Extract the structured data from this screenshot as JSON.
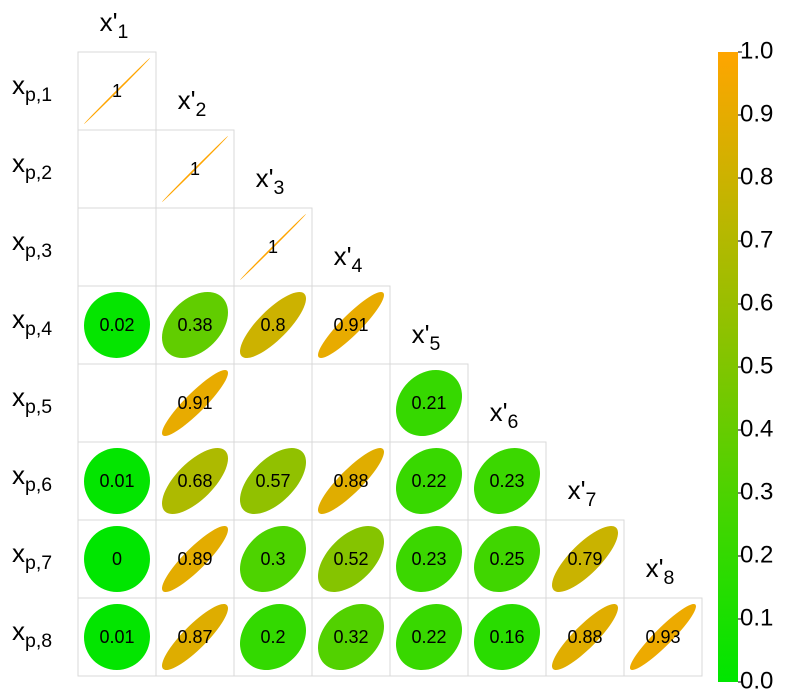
{
  "chart_data": {
    "type": "corrplot",
    "col_labels": [
      {
        "main": "x'",
        "sub": "1"
      },
      {
        "main": "x'",
        "sub": "2"
      },
      {
        "main": "x'",
        "sub": "3"
      },
      {
        "main": "x'",
        "sub": "4"
      },
      {
        "main": "x'",
        "sub": "5"
      },
      {
        "main": "x'",
        "sub": "6"
      },
      {
        "main": "x'",
        "sub": "7"
      },
      {
        "main": "x'",
        "sub": "8"
      }
    ],
    "row_labels": [
      {
        "main": "x",
        "sub": "p,1"
      },
      {
        "main": "x",
        "sub": "p,2"
      },
      {
        "main": "x",
        "sub": "p,3"
      },
      {
        "main": "x",
        "sub": "p,4"
      },
      {
        "main": "x",
        "sub": "p,5"
      },
      {
        "main": "x",
        "sub": "p,6"
      },
      {
        "main": "x",
        "sub": "p,7"
      },
      {
        "main": "x",
        "sub": "p,8"
      }
    ],
    "values": [
      [
        1
      ],
      [
        null,
        1
      ],
      [
        null,
        null,
        1
      ],
      [
        0.02,
        0.38,
        0.8,
        0.91
      ],
      [
        null,
        0.91,
        null,
        null,
        0.21
      ],
      [
        0.01,
        0.68,
        0.57,
        0.88,
        0.22,
        0.23
      ],
      [
        0,
        0.89,
        0.3,
        0.52,
        0.23,
        0.25,
        0.79
      ],
      [
        0.01,
        0.87,
        0.2,
        0.32,
        0.22,
        0.16,
        0.88,
        0.93
      ]
    ],
    "colorscale": [
      "#00e600",
      "#ffa500"
    ],
    "clim": [
      0,
      1
    ],
    "cticks": [
      {
        "value": 0,
        "label": "0.0"
      },
      {
        "value": 0.1,
        "label": "0.1"
      },
      {
        "value": 0.2,
        "label": "0.2"
      },
      {
        "value": 0.3,
        "label": "0.3"
      },
      {
        "value": 0.4,
        "label": "0.4"
      },
      {
        "value": 0.5,
        "label": "0.5"
      },
      {
        "value": 0.6,
        "label": "0.6"
      },
      {
        "value": 0.7,
        "label": "0.7"
      },
      {
        "value": 0.8,
        "label": "0.8"
      },
      {
        "value": 0.9,
        "label": "0.9"
      },
      {
        "value": 1,
        "label": "1.0"
      }
    ]
  }
}
